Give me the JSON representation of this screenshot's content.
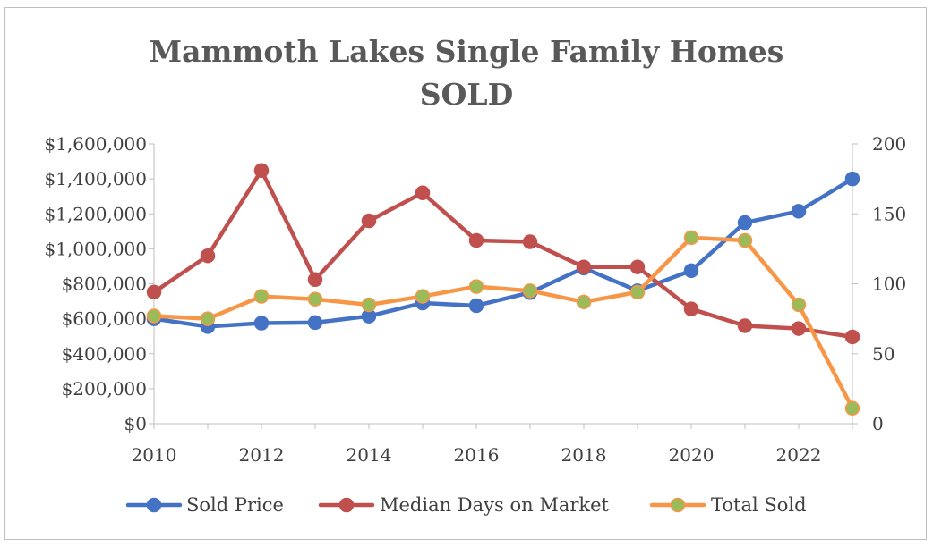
{
  "chart_data": {
    "type": "line",
    "title": "Mammoth Lakes Single Family Homes",
    "subtitle": "SOLD",
    "x": [
      2010,
      2011,
      2012,
      2013,
      2014,
      2015,
      2016,
      2017,
      2018,
      2019,
      2020,
      2021,
      2022,
      2023
    ],
    "x_ticks": [
      "2010",
      "2012",
      "2014",
      "2016",
      "2018",
      "2020",
      "2022"
    ],
    "xlim": [
      2010,
      2023
    ],
    "y_left": {
      "ylim": [
        0,
        1600000
      ],
      "ticks": [
        "$0",
        "$200,000",
        "$400,000",
        "$600,000",
        "$800,000",
        "$1,000,000",
        "$1,200,000",
        "$1,400,000",
        "$1,600,000"
      ]
    },
    "y_right": {
      "ylim": [
        0,
        200
      ],
      "ticks": [
        "0",
        "50",
        "100",
        "150",
        "200"
      ]
    },
    "series": [
      {
        "name": "Sold Price",
        "axis": "left",
        "color": "#4472c4",
        "marker": "#4472c4",
        "values": [
          600000,
          555000,
          575000,
          578000,
          615000,
          690000,
          675000,
          750000,
          890000,
          760000,
          875000,
          1150000,
          1215000,
          1400000
        ]
      },
      {
        "name": "Median Days on Market",
        "axis": "right",
        "color": "#c0504d",
        "marker": "#c0504d",
        "values": [
          94,
          120,
          181,
          103,
          145,
          165,
          131,
          130,
          112,
          112,
          82,
          70,
          68,
          62
        ]
      },
      {
        "name": "Total Sold",
        "axis": "right",
        "color": "#f79646",
        "marker": "#9bbb59",
        "values": [
          77,
          75,
          91,
          89,
          85,
          91,
          98,
          95,
          87,
          94,
          133,
          131,
          85,
          11
        ]
      }
    ],
    "legend_position": "bottom",
    "grid": false
  }
}
